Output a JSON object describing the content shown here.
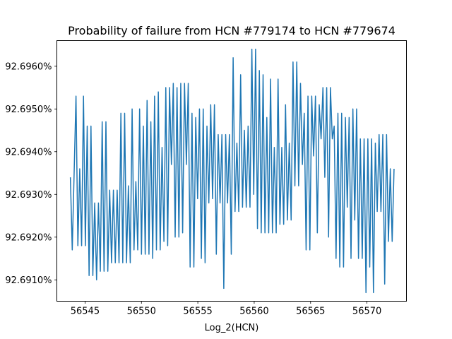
{
  "chart_data": {
    "type": "line",
    "title": "Probability of failure from HCN #779174 to HCN #779674",
    "xlabel": "Log_2(HCN)",
    "ylabel": "",
    "xlim": [
      56542.5,
      56573.5
    ],
    "ylim": [
      0.926905,
      0.926966
    ],
    "x_ticks": [
      56545,
      56550,
      56555,
      56560,
      56565,
      56570
    ],
    "x_tick_labels": [
      "56545",
      "56550",
      "56555",
      "56560",
      "56565",
      "56570"
    ],
    "y_ticks": [
      0.92691,
      0.92692,
      0.92693,
      0.92694,
      0.92695,
      0.92696
    ],
    "y_tick_labels": [
      "92.6910%",
      "92.6920%",
      "92.6930%",
      "92.6940%",
      "92.6950%",
      "92.6960%"
    ],
    "grid": false,
    "series": [
      {
        "color": "#1f77b4",
        "x_start": 56543.7,
        "x_end": 56572.4,
        "values": [
          0.926934,
          0.926917,
          0.926935,
          0.926953,
          0.926918,
          0.926936,
          0.926918,
          0.926953,
          0.926918,
          0.926946,
          0.926911,
          0.926946,
          0.926911,
          0.926928,
          0.92691,
          0.926928,
          0.926912,
          0.926947,
          0.926912,
          0.926947,
          0.926912,
          0.926931,
          0.926914,
          0.926931,
          0.926914,
          0.926931,
          0.926914,
          0.926949,
          0.926914,
          0.926949,
          0.926914,
          0.926932,
          0.926914,
          0.92695,
          0.926917,
          0.926933,
          0.926917,
          0.92695,
          0.926916,
          0.926946,
          0.926916,
          0.926952,
          0.926916,
          0.926947,
          0.926915,
          0.926953,
          0.926917,
          0.926954,
          0.926917,
          0.926941,
          0.926919,
          0.926955,
          0.926918,
          0.926955,
          0.926937,
          0.926956,
          0.92692,
          0.926955,
          0.92692,
          0.926956,
          0.926921,
          0.926956,
          0.926937,
          0.926956,
          0.926913,
          0.926949,
          0.926913,
          0.926948,
          0.926929,
          0.92695,
          0.926915,
          0.92695,
          0.926914,
          0.926946,
          0.926928,
          0.926951,
          0.926929,
          0.926951,
          0.926916,
          0.926944,
          0.926928,
          0.926944,
          0.926908,
          0.926944,
          0.926928,
          0.926944,
          0.926916,
          0.926962,
          0.926926,
          0.926942,
          0.926926,
          0.926958,
          0.926927,
          0.926945,
          0.926927,
          0.926946,
          0.926927,
          0.926964,
          0.92693,
          0.926964,
          0.926922,
          0.926959,
          0.926921,
          0.926958,
          0.926921,
          0.926948,
          0.926921,
          0.926957,
          0.926921,
          0.926941,
          0.926921,
          0.926957,
          0.926923,
          0.926941,
          0.926923,
          0.926951,
          0.926924,
          0.926942,
          0.926924,
          0.926961,
          0.926932,
          0.926961,
          0.926932,
          0.926956,
          0.926937,
          0.926949,
          0.926917,
          0.926953,
          0.926917,
          0.926953,
          0.926939,
          0.926953,
          0.926921,
          0.926951,
          0.926943,
          0.926955,
          0.926934,
          0.926955,
          0.92692,
          0.926955,
          0.926943,
          0.926946,
          0.926915,
          0.926949,
          0.926913,
          0.926949,
          0.926913,
          0.926948,
          0.926927,
          0.926948,
          0.926915,
          0.92695,
          0.926924,
          0.92695,
          0.926915,
          0.926943,
          0.926915,
          0.926943,
          0.926907,
          0.926943,
          0.926913,
          0.926943,
          0.926907,
          0.926942,
          0.926926,
          0.926944,
          0.926926,
          0.926944,
          0.926909,
          0.926944,
          0.926919,
          0.926936,
          0.926919,
          0.926936
        ]
      }
    ]
  }
}
